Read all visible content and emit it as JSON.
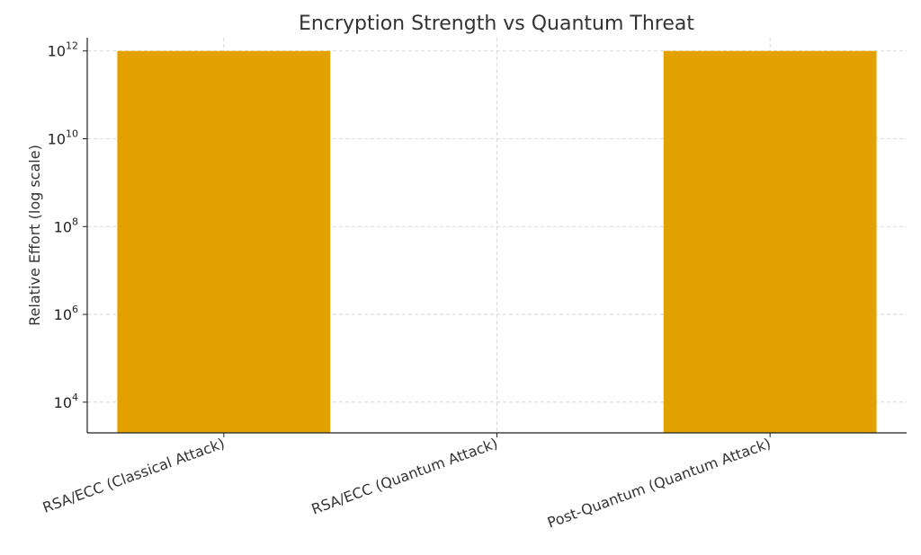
{
  "chart_data": {
    "type": "bar",
    "title": "Encryption Strength vs Quantum Threat",
    "xlabel": "",
    "ylabel": "Relative Effort (log scale)",
    "yscale": "log",
    "ylim": [
      2000,
      2000000000000.0
    ],
    "yticks": [
      {
        "base": "10",
        "exp": "4",
        "value": 10000
      },
      {
        "base": "10",
        "exp": "6",
        "value": 1000000
      },
      {
        "base": "10",
        "exp": "8",
        "value": 100000000
      },
      {
        "base": "10",
        "exp": "10",
        "value": 10000000000
      },
      {
        "base": "10",
        "exp": "12",
        "value": 1000000000000
      }
    ],
    "categories": [
      "RSA/ECC (Classical Attack)",
      "RSA/ECC (Quantum Attack)",
      "Post-Quantum (Quantum Attack)"
    ],
    "values": [
      1000000000000,
      1000,
      1000000000000
    ],
    "bar_color": "#E3A100",
    "grid": true,
    "legend": "none"
  }
}
